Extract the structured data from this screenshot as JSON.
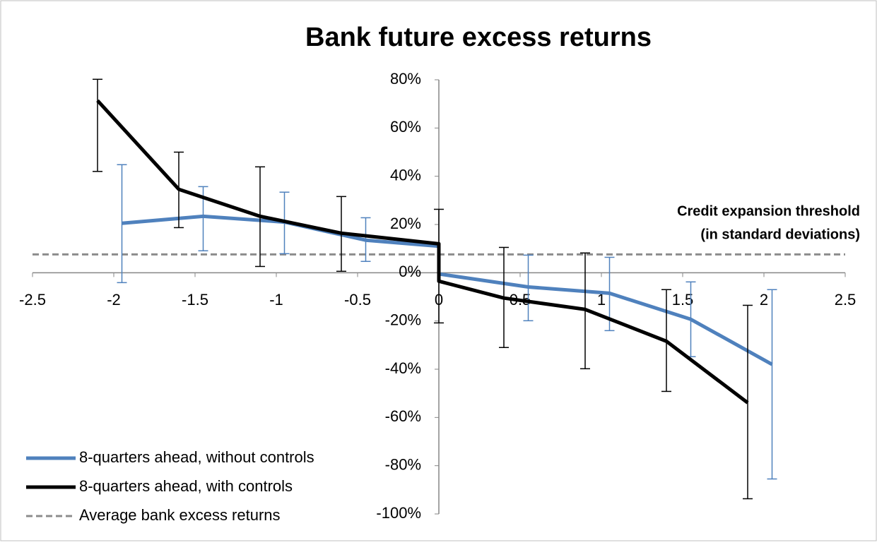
{
  "chart_data": {
    "type": "line",
    "title": "Bank future excess returns",
    "annotation": [
      "Credit expansion threshold",
      "(in standard deviations)"
    ],
    "xlim": [
      -2.5,
      2.5
    ],
    "xticks": [
      -2.5,
      -2,
      -1.5,
      -1,
      -0.5,
      0,
      0.5,
      1,
      1.5,
      2,
      2.5
    ],
    "ylim": [
      -100,
      80
    ],
    "yticks": [
      {
        "value": -100,
        "label": "-100%"
      },
      {
        "value": -80,
        "label": "-80%"
      },
      {
        "value": -60,
        "label": "-60%"
      },
      {
        "value": -40,
        "label": "-40%"
      },
      {
        "value": -20,
        "label": "-20%"
      },
      {
        "value": 0,
        "label": "0%"
      },
      {
        "value": 20,
        "label": "20%"
      },
      {
        "value": 40,
        "label": "40%"
      },
      {
        "value": 60,
        "label": "60%"
      },
      {
        "value": 80,
        "label": "80%"
      }
    ],
    "legend": "bottom-left",
    "series": [
      {
        "name": "8-quarters ahead, without controls",
        "color": "#4f81bd",
        "x": [
          -1.95,
          -1.45,
          -0.95,
          -0.45,
          0,
          0,
          0.55,
          1.05,
          1.55,
          2.05
        ],
        "values": [
          20.5,
          23.4,
          21,
          13.5,
          11,
          -0.5,
          -5.9,
          -8.5,
          -19.3,
          -38
        ],
        "error_high": [
          44.8,
          35.7,
          33.4,
          22.8,
          null,
          null,
          7.3,
          6.4,
          -3.8,
          -7
        ],
        "error_low": [
          -4.1,
          9.1,
          7.9,
          4.7,
          null,
          null,
          -19.9,
          -24,
          -34.8,
          -85.5
        ]
      },
      {
        "name": "8-quarters ahead, with controls",
        "color": "#000000",
        "x": [
          -2.1,
          -1.6,
          -1.1,
          -0.6,
          0,
          0,
          0.4,
          0.9,
          1.4,
          1.9
        ],
        "values": [
          71.4,
          34.6,
          23.4,
          16.4,
          12,
          -3.5,
          -10.5,
          -15.2,
          -28.4,
          -53.9
        ],
        "error_high": [
          80.2,
          50,
          43.9,
          31.6,
          26.3,
          null,
          10.5,
          8.2,
          -7,
          -13.5
        ],
        "error_low": [
          42,
          18.7,
          2.6,
          0.6,
          -20.8,
          null,
          -31,
          -39.8,
          -49.2,
          -93.7
        ]
      }
    ],
    "reference_line": {
      "name": "Average bank excess returns",
      "value": 7.6,
      "color": "#8c8c8c"
    }
  }
}
